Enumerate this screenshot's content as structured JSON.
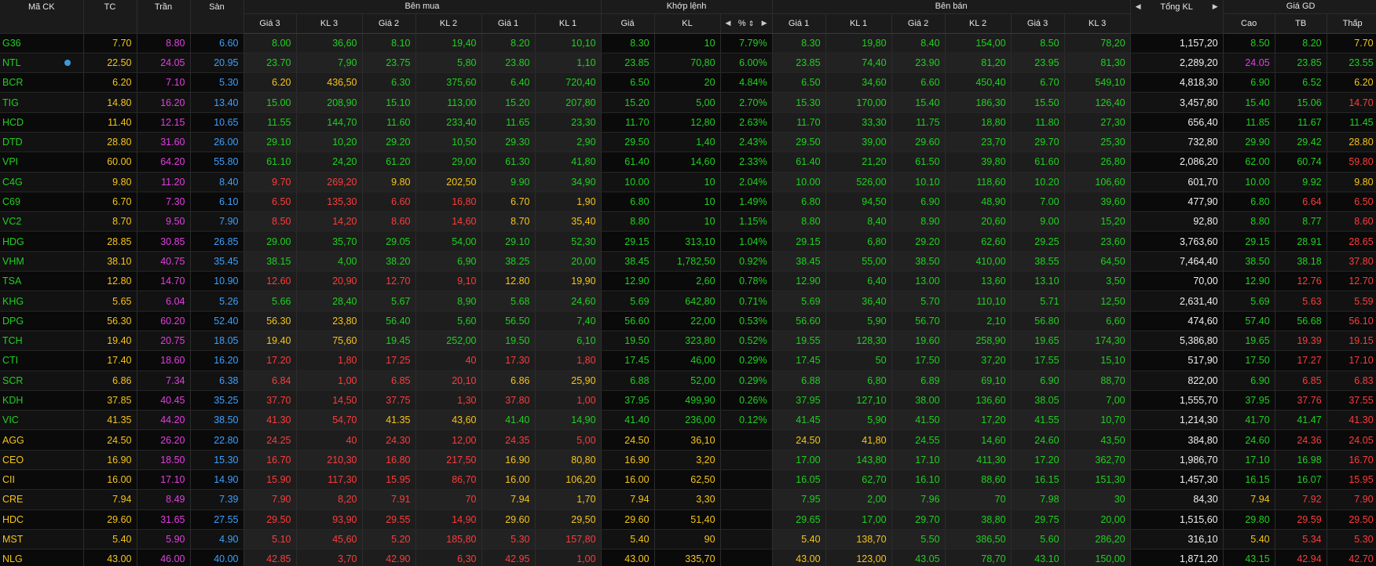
{
  "colors": {
    "background": "#000000",
    "up": "#20d020",
    "down": "#ff3b3b",
    "reference": "#f5c518",
    "ceiling": "#e23fe0",
    "floor": "#3ca0ff",
    "total": "#f0f0f0"
  },
  "headers": {
    "symbol": "Mã CK",
    "ref": "TC",
    "ceiling": "Trần",
    "floor": "Sàn",
    "buy_group": "Bên mua",
    "match_group": "Khớp lệnh",
    "sell_group": "Bên bán",
    "total_volume": "Tổng KL",
    "trade_price_group": "Giá GD",
    "buy_cols": [
      "Giá 3",
      "KL 3",
      "Giá 2",
      "KL 2",
      "Giá 1",
      "KL 1"
    ],
    "match_price": "Giá",
    "match_volume": "KL",
    "match_percent": "%",
    "sell_cols": [
      "Giá 1",
      "KL 1",
      "Giá 2",
      "KL 2",
      "Giá 3",
      "KL 3"
    ],
    "high": "Cao",
    "avg": "TB",
    "low": "Thấp"
  },
  "icons": {
    "left_arrow": "caret-left-icon",
    "right_arrow": "caret-right-icon",
    "sort": "sort-icon",
    "info_dot": "info-dot-icon"
  },
  "rows": [
    {
      "sym": "G36",
      "ref": "7.70",
      "ceil": "8.80",
      "floor": "6.60",
      "bp3": "8.00",
      "bv3": "36,60",
      "bp2": "8.10",
      "bv2": "19,40",
      "bp1": "8.20",
      "bv1": "10,10",
      "mp": "8.30",
      "mv": "10",
      "pct": "7.79%",
      "sp1": "8.30",
      "sv1": "19,80",
      "sp2": "8.40",
      "sv2": "154,00",
      "sp3": "8.50",
      "sv3": "78,20",
      "total": "1,157,20",
      "high": "8.50",
      "avg": "8.20",
      "low": "7.70",
      "info": false
    },
    {
      "sym": "NTL",
      "ref": "22.50",
      "ceil": "24.05",
      "floor": "20.95",
      "bp3": "23.70",
      "bv3": "7,90",
      "bp2": "23.75",
      "bv2": "5,80",
      "bp1": "23.80",
      "bv1": "1,10",
      "mp": "23.85",
      "mv": "70,80",
      "pct": "6.00%",
      "sp1": "23.85",
      "sv1": "74,40",
      "sp2": "23.90",
      "sv2": "81,20",
      "sp3": "23.95",
      "sv3": "81,30",
      "total": "2,289,20",
      "high": "24.05",
      "avg": "23.85",
      "low": "23.55",
      "info": true
    },
    {
      "sym": "BCR",
      "ref": "6.20",
      "ceil": "7.10",
      "floor": "5.30",
      "bp3": "6.20",
      "bv3": "436,50",
      "bp2": "6.30",
      "bv2": "375,60",
      "bp1": "6.40",
      "bv1": "720,40",
      "mp": "6.50",
      "mv": "20",
      "pct": "4.84%",
      "sp1": "6.50",
      "sv1": "34,60",
      "sp2": "6.60",
      "sv2": "450,40",
      "sp3": "6.70",
      "sv3": "549,10",
      "total": "4,818,30",
      "high": "6.90",
      "avg": "6.52",
      "low": "6.20",
      "info": false
    },
    {
      "sym": "TIG",
      "ref": "14.80",
      "ceil": "16.20",
      "floor": "13.40",
      "bp3": "15.00",
      "bv3": "208,90",
      "bp2": "15.10",
      "bv2": "113,00",
      "bp1": "15.20",
      "bv1": "207,80",
      "mp": "15.20",
      "mv": "5,00",
      "pct": "2.70%",
      "sp1": "15.30",
      "sv1": "170,00",
      "sp2": "15.40",
      "sv2": "186,30",
      "sp3": "15.50",
      "sv3": "126,40",
      "total": "3,457,80",
      "high": "15.40",
      "avg": "15.06",
      "low": "14.70",
      "info": false
    },
    {
      "sym": "HCD",
      "ref": "11.40",
      "ceil": "12.15",
      "floor": "10.65",
      "bp3": "11.55",
      "bv3": "144,70",
      "bp2": "11.60",
      "bv2": "233,40",
      "bp1": "11.65",
      "bv1": "23,30",
      "mp": "11.70",
      "mv": "12,80",
      "pct": "2.63%",
      "sp1": "11.70",
      "sv1": "33,30",
      "sp2": "11.75",
      "sv2": "18,80",
      "sp3": "11.80",
      "sv3": "27,30",
      "total": "656,40",
      "high": "11.85",
      "avg": "11.67",
      "low": "11.45",
      "info": false
    },
    {
      "sym": "DTD",
      "ref": "28.80",
      "ceil": "31.60",
      "floor": "26.00",
      "bp3": "29.10",
      "bv3": "10,20",
      "bp2": "29.20",
      "bv2": "10,50",
      "bp1": "29.30",
      "bv1": "2,90",
      "mp": "29.50",
      "mv": "1,40",
      "pct": "2.43%",
      "sp1": "29.50",
      "sv1": "39,00",
      "sp2": "29.60",
      "sv2": "23,70",
      "sp3": "29.70",
      "sv3": "25,30",
      "total": "732,80",
      "high": "29.90",
      "avg": "29.42",
      "low": "28.80",
      "info": false
    },
    {
      "sym": "VPI",
      "ref": "60.00",
      "ceil": "64.20",
      "floor": "55.80",
      "bp3": "61.10",
      "bv3": "24,20",
      "bp2": "61.20",
      "bv2": "29,00",
      "bp1": "61.30",
      "bv1": "41,80",
      "mp": "61.40",
      "mv": "14,60",
      "pct": "2.33%",
      "sp1": "61.40",
      "sv1": "21,20",
      "sp2": "61.50",
      "sv2": "39,80",
      "sp3": "61.60",
      "sv3": "26,80",
      "total": "2,086,20",
      "high": "62.00",
      "avg": "60.74",
      "low": "59.80",
      "info": false
    },
    {
      "sym": "C4G",
      "ref": "9.80",
      "ceil": "11.20",
      "floor": "8.40",
      "bp3": "9.70",
      "bv3": "269,20",
      "bp2": "9.80",
      "bv2": "202,50",
      "bp1": "9.90",
      "bv1": "34,90",
      "mp": "10.00",
      "mv": "10",
      "pct": "2.04%",
      "sp1": "10.00",
      "sv1": "526,00",
      "sp2": "10.10",
      "sv2": "118,60",
      "sp3": "10.20",
      "sv3": "106,60",
      "total": "601,70",
      "high": "10.00",
      "avg": "9.92",
      "low": "9.80",
      "info": false
    },
    {
      "sym": "C69",
      "ref": "6.70",
      "ceil": "7.30",
      "floor": "6.10",
      "bp3": "6.50",
      "bv3": "135,30",
      "bp2": "6.60",
      "bv2": "16,80",
      "bp1": "6.70",
      "bv1": "1,90",
      "mp": "6.80",
      "mv": "10",
      "pct": "1.49%",
      "sp1": "6.80",
      "sv1": "94,50",
      "sp2": "6.90",
      "sv2": "48,90",
      "sp3": "7.00",
      "sv3": "39,60",
      "total": "477,90",
      "high": "6.80",
      "avg": "6.64",
      "low": "6.50",
      "info": false
    },
    {
      "sym": "VC2",
      "ref": "8.70",
      "ceil": "9.50",
      "floor": "7.90",
      "bp3": "8.50",
      "bv3": "14,20",
      "bp2": "8.60",
      "bv2": "14,60",
      "bp1": "8.70",
      "bv1": "35,40",
      "mp": "8.80",
      "mv": "10",
      "pct": "1.15%",
      "sp1": "8.80",
      "sv1": "8,40",
      "sp2": "8.90",
      "sv2": "20,60",
      "sp3": "9.00",
      "sv3": "15,20",
      "total": "92,80",
      "high": "8.80",
      "avg": "8.77",
      "low": "8.60",
      "info": false
    },
    {
      "sym": "HDG",
      "ref": "28.85",
      "ceil": "30.85",
      "floor": "26.85",
      "bp3": "29.00",
      "bv3": "35,70",
      "bp2": "29.05",
      "bv2": "54,00",
      "bp1": "29.10",
      "bv1": "52,30",
      "mp": "29.15",
      "mv": "313,10",
      "pct": "1.04%",
      "sp1": "29.15",
      "sv1": "6,80",
      "sp2": "29.20",
      "sv2": "62,60",
      "sp3": "29.25",
      "sv3": "23,60",
      "total": "3,763,60",
      "high": "29.15",
      "avg": "28.91",
      "low": "28.65",
      "info": false
    },
    {
      "sym": "VHM",
      "ref": "38.10",
      "ceil": "40.75",
      "floor": "35.45",
      "bp3": "38.15",
      "bv3": "4,00",
      "bp2": "38.20",
      "bv2": "6,90",
      "bp1": "38.25",
      "bv1": "20,00",
      "mp": "38.45",
      "mv": "1,782,50",
      "pct": "0.92%",
      "sp1": "38.45",
      "sv1": "55,00",
      "sp2": "38.50",
      "sv2": "410,00",
      "sp3": "38.55",
      "sv3": "64,50",
      "total": "7,464,40",
      "high": "38.50",
      "avg": "38.18",
      "low": "37.80",
      "info": false
    },
    {
      "sym": "TSA",
      "ref": "12.80",
      "ceil": "14.70",
      "floor": "10.90",
      "bp3": "12.60",
      "bv3": "20,90",
      "bp2": "12.70",
      "bv2": "9,10",
      "bp1": "12.80",
      "bv1": "19,90",
      "mp": "12.90",
      "mv": "2,60",
      "pct": "0.78%",
      "sp1": "12.90",
      "sv1": "6,40",
      "sp2": "13.00",
      "sv2": "13,60",
      "sp3": "13.10",
      "sv3": "3,50",
      "total": "70,00",
      "high": "12.90",
      "avg": "12.76",
      "low": "12.70",
      "info": false
    },
    {
      "sym": "KHG",
      "ref": "5.65",
      "ceil": "6.04",
      "floor": "5.26",
      "bp3": "5.66",
      "bv3": "28,40",
      "bp2": "5.67",
      "bv2": "8,90",
      "bp1": "5.68",
      "bv1": "24,60",
      "mp": "5.69",
      "mv": "642,80",
      "pct": "0.71%",
      "sp1": "5.69",
      "sv1": "36,40",
      "sp2": "5.70",
      "sv2": "110,10",
      "sp3": "5.71",
      "sv3": "12,50",
      "total": "2,631,40",
      "high": "5.69",
      "avg": "5.63",
      "low": "5.59",
      "info": false
    },
    {
      "sym": "DPG",
      "ref": "56.30",
      "ceil": "60.20",
      "floor": "52.40",
      "bp3": "56.30",
      "bv3": "23,80",
      "bp2": "56.40",
      "bv2": "5,60",
      "bp1": "56.50",
      "bv1": "7,40",
      "mp": "56.60",
      "mv": "22,00",
      "pct": "0.53%",
      "sp1": "56.60",
      "sv1": "5,90",
      "sp2": "56.70",
      "sv2": "2,10",
      "sp3": "56.80",
      "sv3": "6,60",
      "total": "474,60",
      "high": "57.40",
      "avg": "56.68",
      "low": "56.10",
      "info": false
    },
    {
      "sym": "TCH",
      "ref": "19.40",
      "ceil": "20.75",
      "floor": "18.05",
      "bp3": "19.40",
      "bv3": "75,60",
      "bp2": "19.45",
      "bv2": "252,00",
      "bp1": "19.50",
      "bv1": "6,10",
      "mp": "19.50",
      "mv": "323,80",
      "pct": "0.52%",
      "sp1": "19.55",
      "sv1": "128,30",
      "sp2": "19.60",
      "sv2": "258,90",
      "sp3": "19.65",
      "sv3": "174,30",
      "total": "5,386,80",
      "high": "19.65",
      "avg": "19.39",
      "low": "19.15",
      "info": false
    },
    {
      "sym": "CTI",
      "ref": "17.40",
      "ceil": "18.60",
      "floor": "16.20",
      "bp3": "17.20",
      "bv3": "1,80",
      "bp2": "17.25",
      "bv2": "40",
      "bp1": "17.30",
      "bv1": "1,80",
      "mp": "17.45",
      "mv": "46,00",
      "pct": "0.29%",
      "sp1": "17.45",
      "sv1": "50",
      "sp2": "17.50",
      "sv2": "37,20",
      "sp3": "17.55",
      "sv3": "15,10",
      "total": "517,90",
      "high": "17.50",
      "avg": "17.27",
      "low": "17.10",
      "info": false
    },
    {
      "sym": "SCR",
      "ref": "6.86",
      "ceil": "7.34",
      "floor": "6.38",
      "bp3": "6.84",
      "bv3": "1,00",
      "bp2": "6.85",
      "bv2": "20,10",
      "bp1": "6.86",
      "bv1": "25,90",
      "mp": "6.88",
      "mv": "52,00",
      "pct": "0.29%",
      "sp1": "6.88",
      "sv1": "6,80",
      "sp2": "6.89",
      "sv2": "69,10",
      "sp3": "6.90",
      "sv3": "88,70",
      "total": "822,00",
      "high": "6.90",
      "avg": "6.85",
      "low": "6.83",
      "info": false
    },
    {
      "sym": "KDH",
      "ref": "37.85",
      "ceil": "40.45",
      "floor": "35.25",
      "bp3": "37.70",
      "bv3": "14,50",
      "bp2": "37.75",
      "bv2": "1,30",
      "bp1": "37.80",
      "bv1": "1,00",
      "mp": "37.95",
      "mv": "499,90",
      "pct": "0.26%",
      "sp1": "37.95",
      "sv1": "127,10",
      "sp2": "38.00",
      "sv2": "136,60",
      "sp3": "38.05",
      "sv3": "7,00",
      "total": "1,555,70",
      "high": "37.95",
      "avg": "37.76",
      "low": "37.55",
      "info": false
    },
    {
      "sym": "VIC",
      "ref": "41.35",
      "ceil": "44.20",
      "floor": "38.50",
      "bp3": "41.30",
      "bv3": "54,70",
      "bp2": "41.35",
      "bv2": "43,60",
      "bp1": "41.40",
      "bv1": "14,90",
      "mp": "41.40",
      "mv": "236,00",
      "pct": "0.12%",
      "sp1": "41.45",
      "sv1": "5,90",
      "sp2": "41.50",
      "sv2": "17,20",
      "sp3": "41.55",
      "sv3": "10,70",
      "total": "1,214,30",
      "high": "41.70",
      "avg": "41.47",
      "low": "41.30",
      "info": false
    },
    {
      "sym": "AGG",
      "ref": "24.50",
      "ceil": "26.20",
      "floor": "22.80",
      "bp3": "24.25",
      "bv3": "40",
      "bp2": "24.30",
      "bv2": "12,00",
      "bp1": "24.35",
      "bv1": "5,00",
      "mp": "24.50",
      "mv": "36,10",
      "pct": "",
      "sp1": "24.50",
      "sv1": "41,80",
      "sp2": "24.55",
      "sv2": "14,60",
      "sp3": "24.60",
      "sv3": "43,50",
      "total": "384,80",
      "high": "24.60",
      "avg": "24.36",
      "low": "24.05",
      "info": false
    },
    {
      "sym": "CEO",
      "ref": "16.90",
      "ceil": "18.50",
      "floor": "15.30",
      "bp3": "16.70",
      "bv3": "210,30",
      "bp2": "16.80",
      "bv2": "217,50",
      "bp1": "16.90",
      "bv1": "80,80",
      "mp": "16.90",
      "mv": "3,20",
      "pct": "",
      "sp1": "17.00",
      "sv1": "143,80",
      "sp2": "17.10",
      "sv2": "411,30",
      "sp3": "17.20",
      "sv3": "362,70",
      "total": "1,986,70",
      "high": "17.10",
      "avg": "16.98",
      "low": "16.70",
      "info": false
    },
    {
      "sym": "CII",
      "ref": "16.00",
      "ceil": "17.10",
      "floor": "14.90",
      "bp3": "15.90",
      "bv3": "117,30",
      "bp2": "15.95",
      "bv2": "86,70",
      "bp1": "16.00",
      "bv1": "106,20",
      "mp": "16.00",
      "mv": "62,50",
      "pct": "",
      "sp1": "16.05",
      "sv1": "62,70",
      "sp2": "16.10",
      "sv2": "88,60",
      "sp3": "16.15",
      "sv3": "151,30",
      "total": "1,457,30",
      "high": "16.15",
      "avg": "16.07",
      "low": "15.95",
      "info": false
    },
    {
      "sym": "CRE",
      "ref": "7.94",
      "ceil": "8.49",
      "floor": "7.39",
      "bp3": "7.90",
      "bv3": "8,20",
      "bp2": "7.91",
      "bv2": "70",
      "bp1": "7.94",
      "bv1": "1,70",
      "mp": "7.94",
      "mv": "3,30",
      "pct": "",
      "sp1": "7.95",
      "sv1": "2,00",
      "sp2": "7.96",
      "sv2": "70",
      "sp3": "7.98",
      "sv3": "30",
      "total": "84,30",
      "high": "7.94",
      "avg": "7.92",
      "low": "7.90",
      "info": false
    },
    {
      "sym": "HDC",
      "ref": "29.60",
      "ceil": "31.65",
      "floor": "27.55",
      "bp3": "29.50",
      "bv3": "93,90",
      "bp2": "29.55",
      "bv2": "14,90",
      "bp1": "29.60",
      "bv1": "29,50",
      "mp": "29.60",
      "mv": "51,40",
      "pct": "",
      "sp1": "29.65",
      "sv1": "17,00",
      "sp2": "29.70",
      "sv2": "38,80",
      "sp3": "29.75",
      "sv3": "20,00",
      "total": "1,515,60",
      "high": "29.80",
      "avg": "29.59",
      "low": "29.50",
      "info": false
    },
    {
      "sym": "MST",
      "ref": "5.40",
      "ceil": "5.90",
      "floor": "4.90",
      "bp3": "5.10",
      "bv3": "45,60",
      "bp2": "5.20",
      "bv2": "185,80",
      "bp1": "5.30",
      "bv1": "157,80",
      "mp": "5.40",
      "mv": "90",
      "pct": "",
      "sp1": "5.40",
      "sv1": "138,70",
      "sp2": "5.50",
      "sv2": "386,50",
      "sp3": "5.60",
      "sv3": "286,20",
      "total": "316,10",
      "high": "5.40",
      "avg": "5.34",
      "low": "5.30",
      "info": false
    },
    {
      "sym": "NLG",
      "ref": "43.00",
      "ceil": "46.00",
      "floor": "40.00",
      "bp3": "42.85",
      "bv3": "3,70",
      "bp2": "42.90",
      "bv2": "6,30",
      "bp1": "42.95",
      "bv1": "1,00",
      "mp": "43.00",
      "mv": "335,70",
      "pct": "",
      "sp1": "43.00",
      "sv1": "123,00",
      "sp2": "43.05",
      "sv2": "78,70",
      "sp3": "43.10",
      "sv3": "150,00",
      "total": "1,871,20",
      "high": "43.15",
      "avg": "42.94",
      "low": "42.70",
      "info": false
    }
  ]
}
